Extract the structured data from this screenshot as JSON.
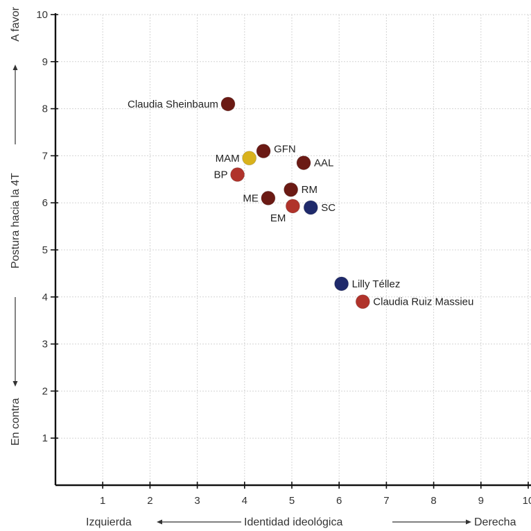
{
  "chart_data": {
    "type": "scatter",
    "xlim": [
      0,
      10
    ],
    "ylim": [
      0,
      10
    ],
    "x_ticks": [
      "1",
      "2",
      "3",
      "4",
      "5",
      "6",
      "7",
      "8",
      "9",
      "10"
    ],
    "y_ticks": [
      "1",
      "2",
      "3",
      "4",
      "5",
      "6",
      "7",
      "8",
      "9",
      "10"
    ],
    "grid": true,
    "x_axis": {
      "left": "Izquierda",
      "center": "Identidad ideológica",
      "right": "Derecha"
    },
    "y_axis": {
      "bottom": "En contra",
      "center": "Postura hacia la 4T",
      "top": "A favor"
    },
    "points": [
      {
        "label": "Claudia Sheinbaum",
        "x": 3.65,
        "y": 8.1,
        "color": "#6b1a14",
        "label_side": "left"
      },
      {
        "label": "GFN",
        "x": 4.4,
        "y": 7.1,
        "color": "#6b1a14",
        "label_side": "right-up"
      },
      {
        "label": "MAM",
        "x": 4.1,
        "y": 6.95,
        "color": "#d9b21c",
        "label_side": "left"
      },
      {
        "label": "AAL",
        "x": 5.25,
        "y": 6.85,
        "color": "#6b1a14",
        "label_side": "right"
      },
      {
        "label": "BP",
        "x": 3.85,
        "y": 6.6,
        "color": "#b0332b",
        "label_side": "left"
      },
      {
        "label": "RM",
        "x": 4.98,
        "y": 6.28,
        "color": "#6b1a14",
        "label_side": "right"
      },
      {
        "label": "ME",
        "x": 4.5,
        "y": 6.1,
        "color": "#6b1a14",
        "label_side": "left"
      },
      {
        "label": "EM",
        "x": 5.02,
        "y": 5.93,
        "color": "#b0332b",
        "label_side": "below-left"
      },
      {
        "label": "SC",
        "x": 5.4,
        "y": 5.9,
        "color": "#1f2a6b",
        "label_side": "right"
      },
      {
        "label": "Lilly Téllez",
        "x": 6.05,
        "y": 4.28,
        "color": "#1f2a6b",
        "label_side": "right"
      },
      {
        "label": "Claudia Ruiz Massieu",
        "x": 6.5,
        "y": 3.9,
        "color": "#b0332b",
        "label_side": "right"
      }
    ]
  }
}
